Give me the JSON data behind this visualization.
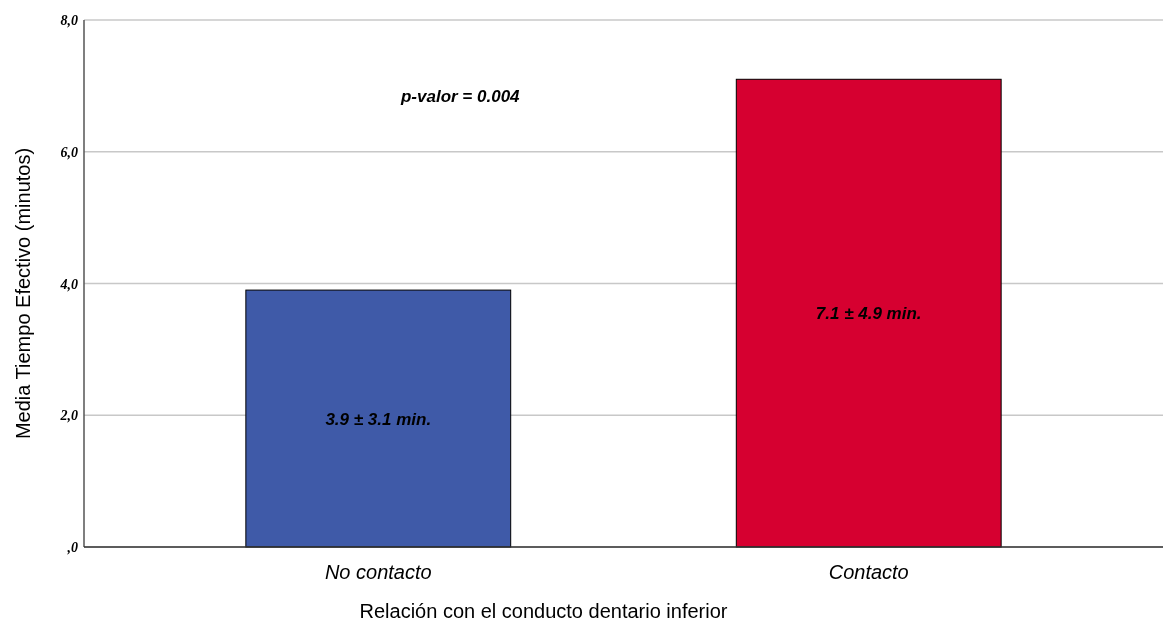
{
  "chart_data": {
    "type": "bar",
    "xlabel": "Relación con el conducto dentario inferior",
    "ylabel": "Media Tiempo Efectivo (minutos)",
    "categories": [
      "No contacto",
      "Contacto"
    ],
    "values": [
      3.9,
      7.1
    ],
    "colors": [
      "#3f5aa8",
      "#d60030"
    ],
    "value_labels": [
      "3.9 ± 3.1 min.",
      "7.1 ± 4.9 min."
    ],
    "ylim": [
      0,
      8
    ],
    "yticks": [
      {
        "value": 0,
        "label": ",0"
      },
      {
        "value": 2,
        "label": "2,0"
      },
      {
        "value": 4,
        "label": "4,0"
      },
      {
        "value": 6,
        "label": "6,0"
      },
      {
        "value": 8,
        "label": "8,0"
      }
    ],
    "grid": "y",
    "annotations": [
      "p-valor = 0.004"
    ]
  }
}
